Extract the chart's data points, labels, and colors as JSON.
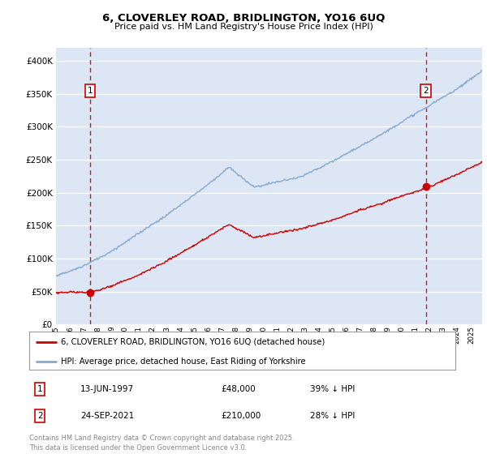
{
  "title_line1": "6, CLOVERLEY ROAD, BRIDLINGTON, YO16 6UQ",
  "title_line2": "Price paid vs. HM Land Registry's House Price Index (HPI)",
  "ylim": [
    0,
    420000
  ],
  "yticks": [
    0,
    50000,
    100000,
    150000,
    200000,
    250000,
    300000,
    350000,
    400000
  ],
  "ytick_labels": [
    "£0",
    "£50K",
    "£100K",
    "£150K",
    "£200K",
    "£250K",
    "£300K",
    "£350K",
    "£400K"
  ],
  "plot_bg_color": "#dce6f5",
  "grid_color": "#ffffff",
  "sale1_year": 1997.45,
  "sale1_price": 48000,
  "sale1_date": "13-JUN-1997",
  "sale1_note": "39% ↓ HPI",
  "sale2_year": 2021.73,
  "sale2_price": 210000,
  "sale2_date": "24-SEP-2021",
  "sale2_note": "28% ↓ HPI",
  "legend_line1": "6, CLOVERLEY ROAD, BRIDLINGTON, YO16 6UQ (detached house)",
  "legend_line2": "HPI: Average price, detached house, East Riding of Yorkshire",
  "copyright_text": "Contains HM Land Registry data © Crown copyright and database right 2025.\nThis data is licensed under the Open Government Licence v3.0.",
  "red_color": "#cc0000",
  "blue_color": "#88aacc",
  "dashed_color": "#cc0000",
  "xlim_start": 1995,
  "xlim_end": 2025.8
}
